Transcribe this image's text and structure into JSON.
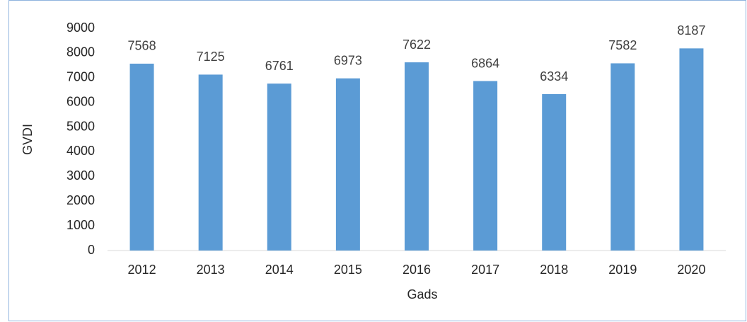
{
  "chart_data": {
    "type": "bar",
    "categories": [
      "2012",
      "2013",
      "2014",
      "2015",
      "2016",
      "2017",
      "2018",
      "2019",
      "2020"
    ],
    "values": [
      7568,
      7125,
      6761,
      6973,
      7622,
      6864,
      6334,
      7582,
      8187
    ],
    "color": "#5b9bd5",
    "xlabel": "Gads",
    "ylabel": "GVDI",
    "ylim": [
      0,
      9000
    ],
    "yticks": [
      0,
      1000,
      2000,
      3000,
      4000,
      5000,
      6000,
      7000,
      8000,
      9000
    ],
    "grid": false,
    "data_labels": true
  }
}
